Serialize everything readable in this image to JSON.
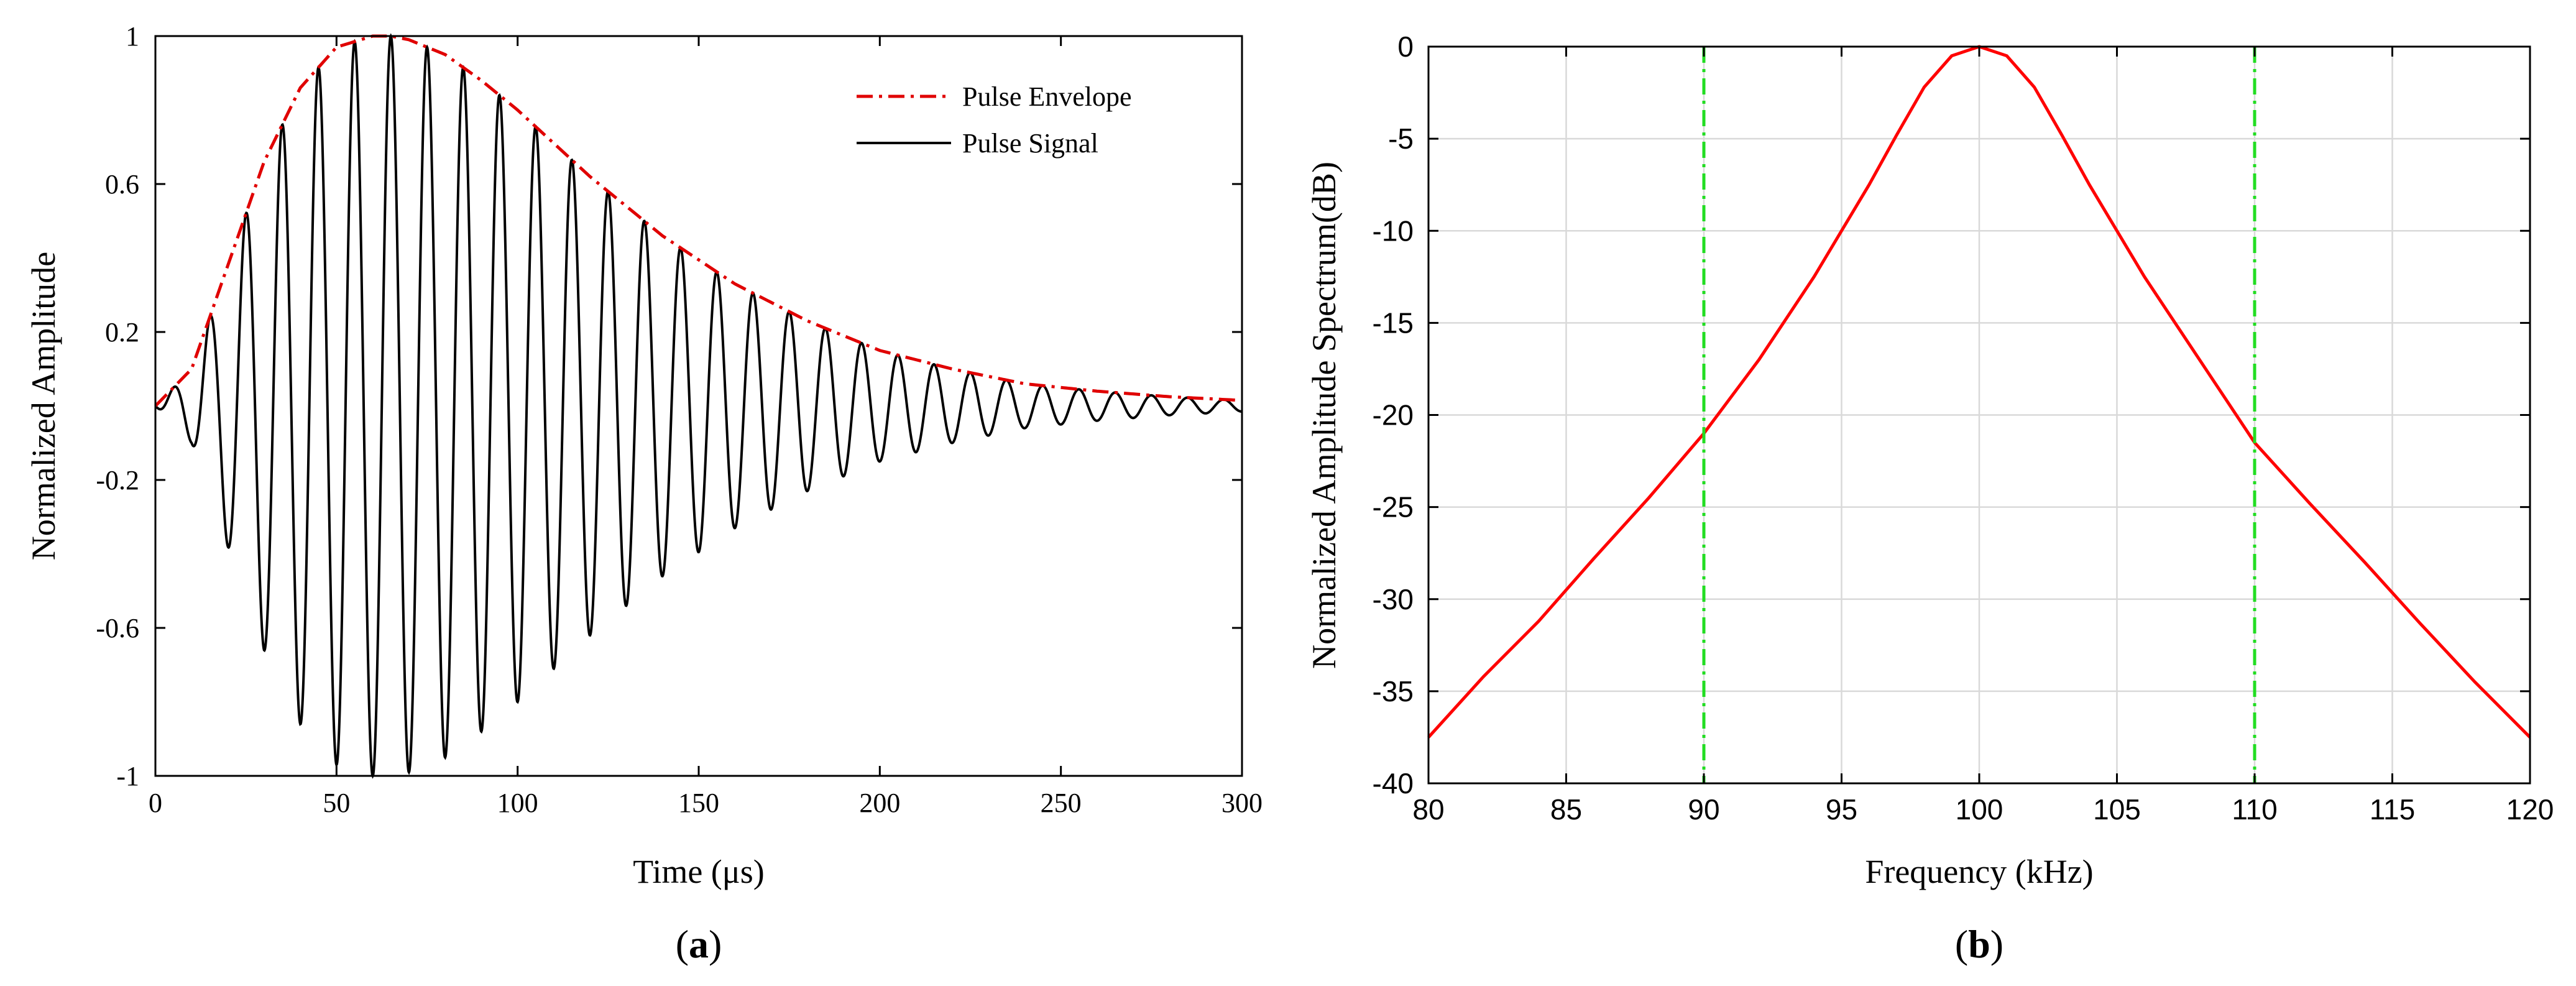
{
  "chart_data": [
    {
      "id": "a",
      "type": "line",
      "panel_label": "a",
      "panel_label_open": "(",
      "panel_label_close": ")",
      "title": "",
      "xlabel": "Time (μs)",
      "ylabel": "Normalized Amplitude",
      "xlim": [
        0,
        300
      ],
      "ylim": [
        -1,
        1
      ],
      "xticks": [
        0,
        50,
        100,
        150,
        200,
        250,
        300
      ],
      "xtick_labels": [
        "0",
        "50",
        "100",
        "150",
        "200",
        "250",
        "300"
      ],
      "yticks": [
        -1,
        -0.6,
        -0.2,
        0.2,
        0.6,
        1
      ],
      "ytick_labels": [
        "-1",
        "-0.6",
        "-0.2",
        "0.2",
        "0.6",
        "1"
      ],
      "grid": false,
      "legend_position": "top-right",
      "legend": [
        "Pulse Envelope",
        "Pulse Signal"
      ],
      "series": [
        {
          "name": "Pulse Envelope",
          "color": "#e00000",
          "style": "dash-dot",
          "x": [
            0,
            10,
            20,
            30,
            40,
            50,
            60,
            65,
            70,
            80,
            90,
            100,
            120,
            140,
            160,
            180,
            200,
            220,
            240,
            260,
            280,
            300
          ],
          "y": [
            0.0,
            0.1,
            0.38,
            0.66,
            0.86,
            0.97,
            1.0,
            1.0,
            0.99,
            0.95,
            0.88,
            0.8,
            0.62,
            0.46,
            0.33,
            0.23,
            0.15,
            0.1,
            0.06,
            0.04,
            0.025,
            0.015
          ]
        },
        {
          "name": "Pulse Signal",
          "color": "#000000",
          "style": "solid",
          "carrier_frequency_khz": 100,
          "x_range": [
            0,
            300
          ],
          "description_of_values": "sine carrier of 100 kHz modulated by the Pulse Envelope"
        }
      ]
    },
    {
      "id": "b",
      "type": "line",
      "panel_label": "b",
      "panel_label_open": "(",
      "panel_label_close": ")",
      "title": "",
      "xlabel": "Frequency (kHz)",
      "ylabel": "Normalized Amplitude Spectrum(dB)",
      "xlim": [
        80,
        120
      ],
      "ylim": [
        -40,
        0
      ],
      "xticks": [
        80,
        85,
        90,
        95,
        100,
        105,
        110,
        115,
        120
      ],
      "xtick_labels": [
        "80",
        "85",
        "90",
        "95",
        "100",
        "105",
        "110",
        "115",
        "120"
      ],
      "yticks": [
        0,
        -5,
        -10,
        -15,
        -20,
        -25,
        -30,
        -35,
        -40
      ],
      "ytick_labels": [
        "0",
        "-5",
        "-10",
        "-15",
        "-20",
        "-25",
        "-30",
        "-35",
        "-40"
      ],
      "grid": true,
      "series": [
        {
          "name": "Spectrum",
          "color": "#ff0000",
          "style": "solid",
          "x": [
            80,
            82,
            84,
            86,
            88,
            90,
            92,
            94,
            96,
            97,
            98,
            99,
            100,
            101,
            102,
            103,
            104,
            106,
            108,
            110,
            112,
            114,
            116,
            118,
            120
          ],
          "y": [
            -37.5,
            -34.2,
            -31.2,
            -27.8,
            -24.5,
            -21.0,
            -17.0,
            -12.5,
            -7.5,
            -4.8,
            -2.2,
            -0.5,
            0.0,
            -0.5,
            -2.2,
            -4.8,
            -7.5,
            -12.5,
            -17.0,
            -21.5,
            -24.8,
            -28.0,
            -31.3,
            -34.5,
            -37.5
          ]
        },
        {
          "name": "Band Edge 90 kHz",
          "color": "#22dd22",
          "style": "dash-dot",
          "x": [
            90,
            90
          ],
          "y": [
            0,
            -40
          ]
        },
        {
          "name": "Band Edge 110 kHz",
          "color": "#22dd22",
          "style": "dash-dot",
          "x": [
            110,
            110
          ],
          "y": [
            0,
            -40
          ]
        }
      ]
    }
  ]
}
